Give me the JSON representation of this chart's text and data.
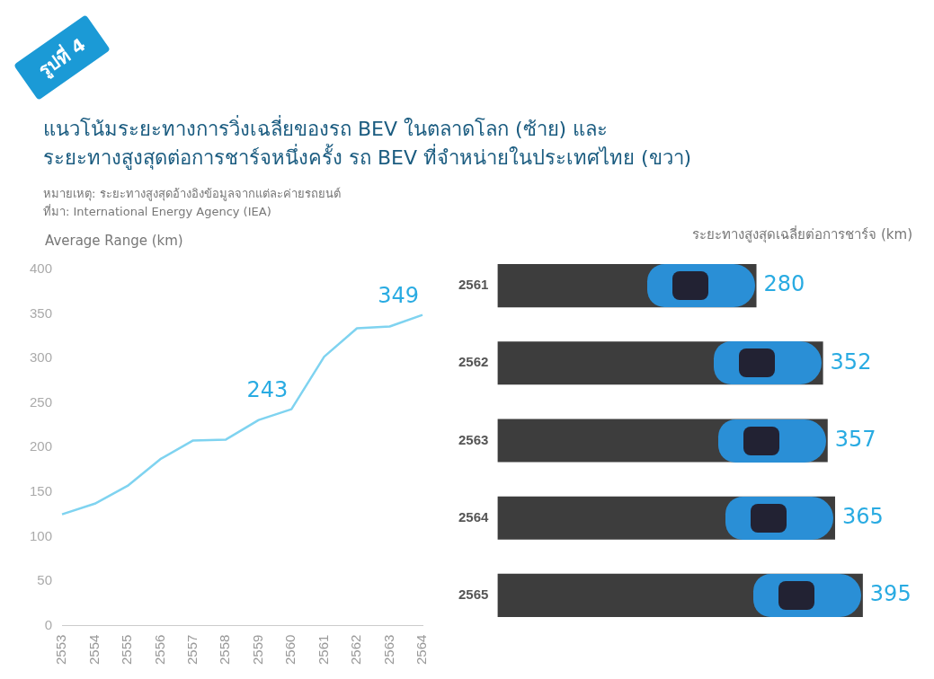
{
  "chart_data": [
    {
      "type": "line",
      "title": "แนวโน้มระยะทางการวิ่งเฉลี่ยของรถ BEV ในตลาดโลก (ซ้าย) และ\nระยะทางสูงสุดต่อการชาร์จหนึ่งครั้ง รถ BEV ที่จำหน่ายในประเทศไทย (ขวา)",
      "annotations": [
        "รูปที่ 4",
        "หมายเหตุ: ระยะทางสูงสุดอ้างอิงข้อมูลจากแต่ละค่ายรถยนต์",
        "ที่มา: International Energy Agency (IEA)"
      ],
      "ylabel": "Average Range (km)",
      "categories": [
        "2553",
        "2554",
        "2555",
        "2556",
        "2557",
        "2558",
        "2559",
        "2560",
        "2561",
        "2562",
        "2563",
        "2564"
      ],
      "series": [
        {
          "color": "#7fd3f0",
          "values": [
            125,
            137,
            157,
            187,
            208,
            209,
            231,
            243,
            302,
            334,
            336,
            349
          ],
          "value_labels": [
            null,
            null,
            null,
            null,
            null,
            null,
            null,
            "243",
            null,
            null,
            null,
            "349"
          ]
        }
      ],
      "ylim": [
        0,
        400
      ],
      "yticks": [
        0,
        50,
        100,
        150,
        200,
        250,
        300,
        350,
        400
      ],
      "grid": false,
      "legend": false,
      "marker": "none"
    },
    {
      "type": "bar",
      "orientation": "horizontal",
      "xlabel": "ระยะทางสูงสุดเฉลี่ยต่อการชาร์จ (km)",
      "categories": [
        "2561",
        "2562",
        "2563",
        "2564",
        "2565"
      ],
      "series": [
        {
          "color": "#3d3d3d",
          "values": [
            280,
            352,
            357,
            365,
            395
          ]
        }
      ],
      "data_labels": true,
      "tick_labels": "y",
      "grid": false,
      "legend": false
    }
  ]
}
